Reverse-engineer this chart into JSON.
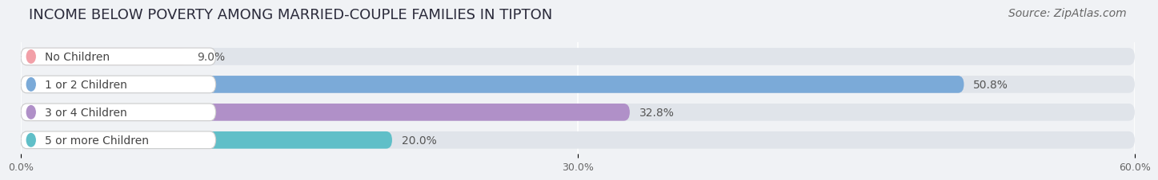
{
  "title": "INCOME BELOW POVERTY AMONG MARRIED-COUPLE FAMILIES IN TIPTON",
  "source": "Source: ZipAtlas.com",
  "categories": [
    "No Children",
    "1 or 2 Children",
    "3 or 4 Children",
    "5 or more Children"
  ],
  "values": [
    9.0,
    50.8,
    32.8,
    20.0
  ],
  "bar_colors": [
    "#f2a0a8",
    "#7baad8",
    "#b090c8",
    "#60bfc8"
  ],
  "background_color": "#f0f2f5",
  "bar_bg_color": "#e0e4ea",
  "xlim": [
    0,
    60
  ],
  "xticks": [
    0,
    30.0,
    60.0
  ],
  "xticklabels": [
    "0.0%",
    "30.0%",
    "60.0%"
  ],
  "title_fontsize": 13,
  "source_fontsize": 10,
  "bar_label_fontsize": 10,
  "category_fontsize": 10,
  "figure_width": 14.06,
  "figure_height": 2.33
}
